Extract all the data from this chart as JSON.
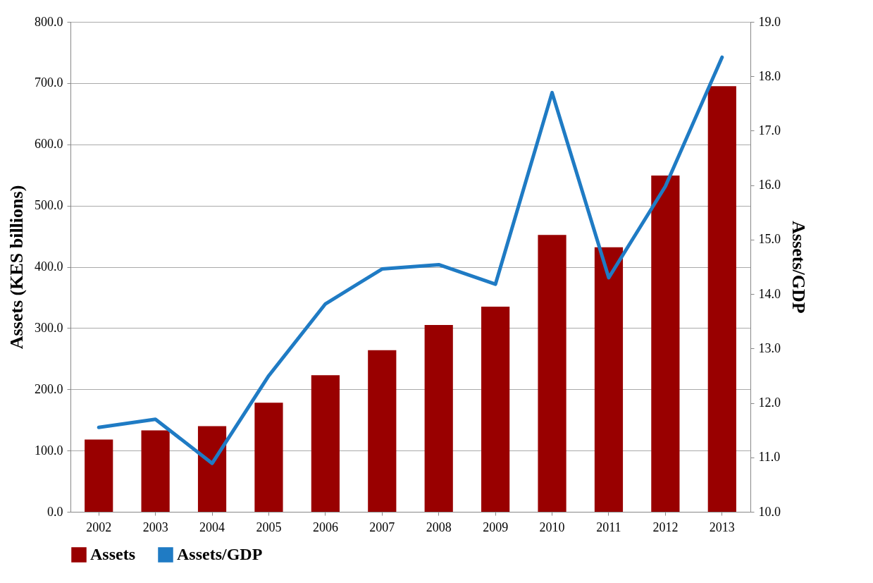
{
  "chart_data": {
    "type": "bar",
    "categories": [
      "2002",
      "2003",
      "2004",
      "2005",
      "2006",
      "2007",
      "2008",
      "2009",
      "2010",
      "2011",
      "2012",
      "2013"
    ],
    "series": [
      {
        "name": "Assets",
        "color": "#990000",
        "values": [
          118,
          133,
          140,
          178,
          223,
          264,
          305,
          335,
          452,
          432,
          549,
          695
        ]
      },
      {
        "name": "Assets/GDP",
        "type": "line",
        "axis": "y2",
        "color": "#1f7bc4",
        "values": [
          11.55,
          11.7,
          10.89,
          12.5,
          13.82,
          14.46,
          14.54,
          14.18,
          17.7,
          14.3,
          15.98,
          18.35
        ]
      }
    ],
    "ylabel": "Assets (KES billions)",
    "y2label": "Assets/GDP",
    "ylim": [
      0,
      800
    ],
    "yticks": [
      {
        "value": 0,
        "label": "0.0"
      },
      {
        "value": 100,
        "label": "100.0"
      },
      {
        "value": 200,
        "label": "200.0"
      },
      {
        "value": 300,
        "label": "300.0"
      },
      {
        "value": 400,
        "label": "400.0"
      },
      {
        "value": 500,
        "label": "500.0"
      },
      {
        "value": 600,
        "label": "600.0"
      },
      {
        "value": 700,
        "label": "700.0"
      },
      {
        "value": 800,
        "label": "800.0"
      }
    ],
    "y2lim": [
      10,
      19
    ],
    "y2ticks": [
      {
        "value": 10,
        "label": "10.0"
      },
      {
        "value": 11,
        "label": "11.0"
      },
      {
        "value": 12,
        "label": "12.0"
      },
      {
        "value": 13,
        "label": "13.0"
      },
      {
        "value": 14,
        "label": "14.0"
      },
      {
        "value": 15,
        "label": "15.0"
      },
      {
        "value": 16,
        "label": "16.0"
      },
      {
        "value": 17,
        "label": "17.0"
      },
      {
        "value": 18,
        "label": "18.0"
      },
      {
        "value": 19,
        "label": "19.0"
      }
    ],
    "grid": "y",
    "legend": "bottom"
  }
}
